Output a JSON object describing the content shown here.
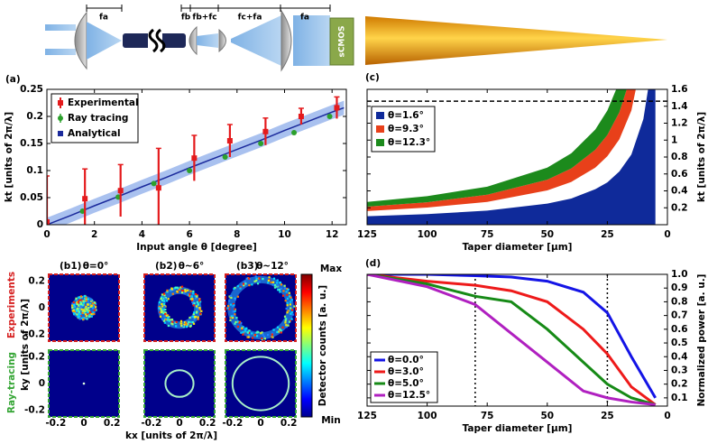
{
  "setup": {
    "labels": [
      "fa",
      "fb",
      "fb+fc",
      "fc+fa",
      "fa"
    ],
    "camera": "sCMOS"
  },
  "chart_data": [
    {
      "type": "errorbar",
      "label": "(a)",
      "x_label": "Input angle θ [degree]",
      "y_label": "kt [units of 2π/λ]",
      "xlim": [
        0,
        12.6
      ],
      "ylim": [
        0,
        0.25
      ],
      "xticks": [
        0,
        2,
        4,
        6,
        8,
        10,
        12
      ],
      "yticks": [
        0,
        0.05,
        0.1,
        0.15,
        0.2,
        0.25
      ],
      "legend": "upper left",
      "series": [
        {
          "name": "Experimental",
          "color": "#e41a1c",
          "x": [
            0,
            1.6,
            3.1,
            4.7,
            6.2,
            7.7,
            9.2,
            10.7,
            12.2
          ],
          "values": [
            0.005,
            0.048,
            0.063,
            0.068,
            0.123,
            0.155,
            0.172,
            0.2,
            0.216
          ],
          "errors": [
            0.085,
            0.055,
            0.048,
            0.073,
            0.042,
            0.03,
            0.025,
            0.015,
            0.02
          ]
        },
        {
          "name": "Ray tracing",
          "color": "#2ca02c",
          "x": [
            0,
            1.5,
            3,
            4.5,
            6,
            7.5,
            9,
            10.4,
            11.9
          ],
          "values": [
            0.004,
            0.025,
            0.051,
            0.076,
            0.1,
            0.125,
            0.15,
            0.17,
            0.2
          ]
        },
        {
          "name": "Analytical",
          "color": "#1b2a9c",
          "band_color": "#a9c1ef",
          "x": [
            0,
            1,
            2,
            3,
            4,
            5,
            6,
            7,
            8,
            9,
            10,
            11,
            12,
            12.5
          ],
          "values": [
            0,
            0.017,
            0.035,
            0.052,
            0.07,
            0.087,
            0.105,
            0.122,
            0.139,
            0.156,
            0.174,
            0.191,
            0.208,
            0.216
          ],
          "errors": [
            0.013,
            0.013,
            0.013,
            0.013,
            0.013,
            0.013,
            0.013,
            0.013,
            0.013,
            0.013,
            0.013,
            0.013,
            0.013,
            0.013
          ]
        }
      ]
    },
    {
      "type": "area",
      "label": "(c)",
      "x_label": "Taper diameter [μm]",
      "y_label": "kt [units of 2π/λ]",
      "xlim": [
        125,
        0
      ],
      "ylim": [
        0,
        1.6
      ],
      "xticks": [
        125,
        100,
        75,
        50,
        25,
        0
      ],
      "yticks": [
        0.2,
        0.4,
        0.6,
        0.8,
        1,
        1.2,
        1.4,
        1.6
      ],
      "legend": "upper left",
      "hline": 1.46,
      "x": [
        125,
        100,
        75,
        50,
        40,
        30,
        25,
        20,
        15,
        10,
        7,
        5
      ],
      "series": [
        {
          "name": "θ=1.6°",
          "color": "#0f2a9a",
          "lower": [
            0,
            0,
            0,
            0,
            0,
            0,
            0,
            0,
            0,
            0,
            0,
            0
          ],
          "upper": [
            0.1,
            0.125,
            0.167,
            0.25,
            0.31,
            0.42,
            0.5,
            0.63,
            0.83,
            1.25,
            1.79,
            2.5
          ]
        },
        {
          "name": "θ=9.3°",
          "color": "#e8401a",
          "lower": [
            0.162,
            0.203,
            0.27,
            0.405,
            0.506,
            0.675,
            0.81,
            1.01,
            1.35,
            2.03,
            2.89,
            4.05
          ],
          "upper": [
            0.213,
            0.266,
            0.355,
            0.532,
            0.665,
            0.887,
            1.06,
            1.33,
            1.77,
            2.66,
            3.8,
            5.32
          ]
        },
        {
          "name": "θ=12.3°",
          "color": "#1c8a1c",
          "lower": [
            0.213,
            0.266,
            0.355,
            0.532,
            0.665,
            0.887,
            1.06,
            1.33,
            1.77,
            2.66,
            3.8,
            5.32
          ],
          "upper": [
            0.27,
            0.338,
            0.45,
            0.675,
            0.844,
            1.125,
            1.35,
            1.69,
            2.25,
            3.38,
            4.82,
            6.75
          ]
        }
      ]
    },
    {
      "type": "image",
      "x_label": "kx [units of 2π/λ]",
      "y_label": "ky [units of 2π/λ]",
      "rows": [
        "Experiments",
        "Ray-tracing"
      ],
      "row_colors": [
        "#d62020",
        "#35a535"
      ],
      "xlim": [
        -0.25,
        0.25
      ],
      "ylim": [
        -0.25,
        0.25
      ],
      "xticks": [
        -0.2,
        0,
        0.2
      ],
      "yticks": [
        0.2,
        0,
        -0.2
      ],
      "colorbar": {
        "label": "Detector counts [a. u.]",
        "max": "Max",
        "min": "Min"
      },
      "panels": [
        {
          "label": "(b1)",
          "title": "θ=0°",
          "experiment_radius": 0.09,
          "ring_radius": 0
        },
        {
          "label": "(b2)",
          "title": "θ~6°",
          "experiment_radius": 0.13,
          "ring_radius": 0.1
        },
        {
          "label": "(b3)",
          "title": "θ~12°",
          "experiment_radius": 0.21,
          "ring_radius": 0.2
        }
      ]
    },
    {
      "type": "line",
      "label": "(d)",
      "x_label": "Taper diameter [μm]",
      "y_label": "Normalized power [a. u.]",
      "xlim": [
        125,
        0
      ],
      "ylim": [
        0.04,
        1
      ],
      "xticks": [
        125,
        100,
        75,
        50,
        25,
        0
      ],
      "yticks": [
        0.1,
        0.2,
        0.3,
        0.4,
        0.5,
        0.6,
        0.7,
        0.8,
        0.9,
        {
          "value": 1,
          "label": "1.0"
        }
      ],
      "legend": "lower left",
      "vlines": [
        80,
        25
      ],
      "x": [
        125,
        100,
        80,
        65,
        50,
        35,
        25,
        15,
        5
      ],
      "series": [
        {
          "name": "θ=0.0°",
          "color": "#1414e6",
          "values": [
            1,
            1,
            0.99,
            0.98,
            0.95,
            0.87,
            0.72,
            0.4,
            0.1
          ]
        },
        {
          "name": "θ=3.0°",
          "color": "#ee1a1a",
          "values": [
            1,
            0.95,
            0.92,
            0.88,
            0.8,
            0.6,
            0.42,
            0.18,
            0.05
          ]
        },
        {
          "name": "θ=5.0°",
          "color": "#168a16",
          "values": [
            1,
            0.93,
            0.84,
            0.8,
            0.6,
            0.36,
            0.2,
            0.1,
            0.05
          ]
        },
        {
          "name": "θ=12.5°",
          "color": "#b020c0",
          "values": [
            1,
            0.91,
            0.78,
            0.57,
            0.36,
            0.15,
            0.1,
            0.07,
            0.05
          ]
        }
      ]
    }
  ]
}
